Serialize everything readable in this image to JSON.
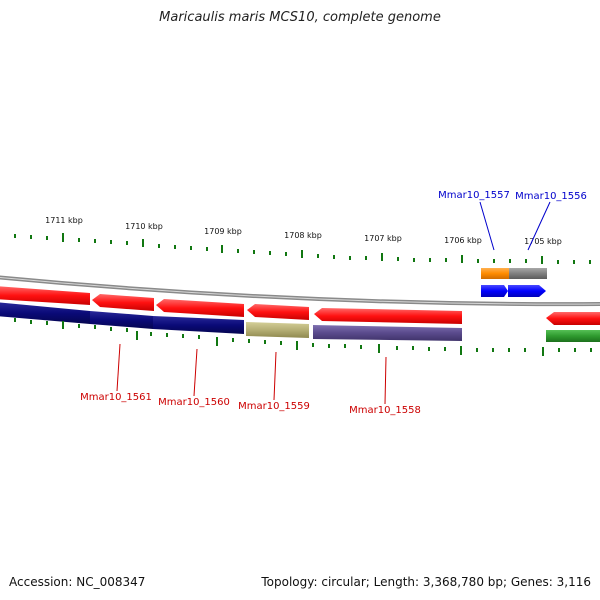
{
  "title": "Maricaulis maris MCS10, complete genome",
  "accession": "Accession: NC_008347",
  "summary": "Topology: circular; Length: 3,368,780 bp; Genes: 3,116",
  "scale_labels": [
    "1711 kbp",
    "1710 kbp",
    "1709 kbp",
    "1708 kbp",
    "1707 kbp",
    "1706 kbp",
    "1705 kbp"
  ],
  "genes": [
    {
      "name": "Mmar10_1561",
      "color": "#cc0000"
    },
    {
      "name": "Mmar10_1560",
      "color": "#cc0000"
    },
    {
      "name": "Mmar10_1559",
      "color": "#cc0000"
    },
    {
      "name": "Mmar10_1558",
      "color": "#cc0000"
    },
    {
      "name": "Mmar10_1557",
      "color": "#0000cc"
    },
    {
      "name": "Mmar10_1556",
      "color": "#0000cc"
    }
  ],
  "colors": {
    "cds": "#ff1a1a",
    "blast_navy": "#0a0a78",
    "blast_olive": "#b4ae74",
    "blast_purple": "#5a4a8c",
    "blast_green": "#2f9a2f",
    "orange": "#ff8c00",
    "gray": "#808080",
    "blue": "#0000ff",
    "tick": "#117711",
    "backbone": "#8c8c8c"
  }
}
